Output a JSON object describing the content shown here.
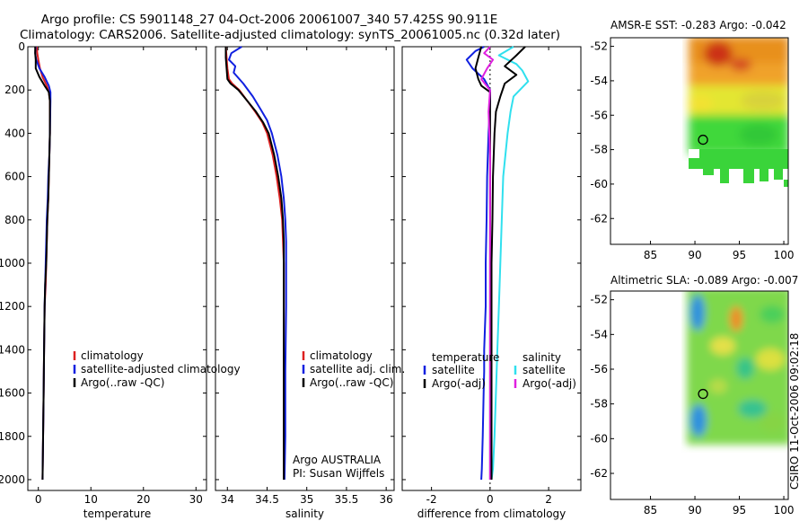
{
  "title": {
    "line1": "Argo profile: CS 5901148_27 04-Oct-2006 20061007_340 57.425S 90.911E",
    "line2": "Climatology: CARS2006. Satellite-adjusted climatology: synTS_20061005.nc (0.32d later)"
  },
  "colors": {
    "red": "#dd2020",
    "blue": "#1020e0",
    "black": "#000000",
    "cyan": "#30e0ee",
    "magenta": "#e020e0"
  },
  "stamp": "CSIRO 11-Oct-2006 09:02:18",
  "chart_data": [
    {
      "id": "temperature",
      "type": "line",
      "xlabel": "temperature",
      "xlim": [
        -2,
        32
      ],
      "ylim": [
        2050,
        0
      ],
      "xticks": [
        0,
        10,
        20,
        30
      ],
      "yticks": [
        0,
        200,
        400,
        600,
        800,
        1000,
        1200,
        1400,
        1600,
        1800,
        2000
      ],
      "legend": [
        "climatology",
        "satellite-adjusted climatology",
        "Argo(..raw -QC)"
      ],
      "series": [
        {
          "name": "climatology",
          "color": "red",
          "x": [
            -0.3,
            -0.2,
            0.0,
            0.3,
            0.8,
            1.6,
            2.0,
            2.2,
            2.2,
            2.1,
            2.0,
            1.9,
            1.7,
            1.5,
            1.4,
            1.2,
            1.1,
            1.0,
            0.9,
            0.8
          ],
          "y": [
            0,
            30,
            60,
            100,
            140,
            180,
            210,
            250,
            400,
            500,
            600,
            700,
            800,
            1000,
            1100,
            1200,
            1400,
            1600,
            1800,
            2000
          ]
        },
        {
          "name": "satellite-adjusted climatology",
          "color": "blue",
          "x": [
            -0.5,
            -0.6,
            -0.4,
            0.2,
            1.2,
            2.0,
            2.3,
            2.3,
            2.2,
            2.1,
            1.9,
            1.8,
            1.6,
            1.4,
            1.3,
            1.2,
            1.1,
            1.0,
            0.9,
            0.8
          ],
          "y": [
            0,
            30,
            60,
            100,
            140,
            180,
            210,
            250,
            400,
            500,
            600,
            700,
            800,
            1000,
            1100,
            1200,
            1400,
            1600,
            1800,
            2000
          ]
        },
        {
          "name": "Argo(..raw -QC)",
          "color": "black",
          "x": [
            -0.6,
            -0.6,
            -0.5,
            -0.5,
            0.2,
            1.2,
            2.0,
            2.2,
            2.2,
            2.1,
            2.0,
            1.9,
            1.7,
            1.5,
            1.3,
            1.2,
            1.1,
            1.0,
            0.9,
            0.8
          ],
          "y": [
            0,
            30,
            60,
            100,
            140,
            180,
            210,
            250,
            400,
            500,
            600,
            700,
            800,
            1000,
            1100,
            1200,
            1400,
            1600,
            1800,
            2000
          ]
        }
      ]
    },
    {
      "id": "salinity",
      "type": "line",
      "xlabel": "salinity",
      "xlim": [
        33.85,
        36.1
      ],
      "ylim": [
        2050,
        0
      ],
      "xticks": [
        34,
        34.5,
        35,
        35.5,
        36
      ],
      "yticks": [
        0,
        200,
        400,
        600,
        800,
        1000,
        1200,
        1400,
        1600,
        1800,
        2000
      ],
      "legend": [
        "climatology",
        "satellite adj. clim.",
        "Argo(..raw -QC)"
      ],
      "annotation": [
        "Argo AUSTRALIA",
        "PI: Susan Wijffels"
      ],
      "series": [
        {
          "name": "climatology",
          "color": "red",
          "x": [
            33.98,
            33.99,
            34.0,
            34.02,
            34.06,
            34.15,
            34.25,
            34.35,
            34.44,
            34.5,
            34.57,
            34.62,
            34.66,
            34.69,
            34.7,
            34.71,
            34.71,
            34.71,
            34.71,
            34.71
          ],
          "y": [
            0,
            50,
            100,
            150,
            170,
            200,
            250,
            300,
            350,
            400,
            500,
            600,
            700,
            800,
            900,
            1000,
            1200,
            1500,
            1800,
            2000
          ]
        },
        {
          "name": "satellite adj. clim.",
          "color": "blue",
          "x": [
            34.18,
            34.05,
            34.02,
            34.1,
            34.08,
            34.2,
            34.32,
            34.42,
            34.5,
            34.56,
            34.63,
            34.68,
            34.71,
            34.73,
            34.74,
            34.74,
            34.74,
            34.73,
            34.73,
            34.72
          ],
          "y": [
            0,
            30,
            60,
            90,
            120,
            170,
            230,
            290,
            340,
            400,
            500,
            600,
            700,
            800,
            900,
            1000,
            1200,
            1500,
            1800,
            2000
          ]
        },
        {
          "name": "Argo(..raw -QC)",
          "color": "black",
          "x": [
            33.98,
            33.98,
            33.99,
            34.0,
            34.04,
            34.14,
            34.25,
            34.36,
            34.45,
            34.52,
            34.59,
            34.64,
            34.68,
            34.7,
            34.71,
            34.71,
            34.71,
            34.71,
            34.71,
            34.71
          ],
          "y": [
            0,
            50,
            100,
            150,
            170,
            200,
            250,
            300,
            350,
            400,
            500,
            600,
            700,
            800,
            900,
            1000,
            1200,
            1500,
            1800,
            2000
          ]
        }
      ]
    },
    {
      "id": "difference",
      "type": "line",
      "xlabel": "difference from climatology",
      "xlim": [
        -3,
        3.1
      ],
      "ylim": [
        2050,
        0
      ],
      "xticks": [
        -2,
        0,
        2
      ],
      "yticks": [
        0,
        200,
        400,
        600,
        800,
        1000,
        1200,
        1400,
        1600,
        1800,
        2000
      ],
      "legend_headers": [
        "temperature",
        "salinity"
      ],
      "legend": [
        "satellite",
        "Argo(-adj)",
        "satellite",
        "Argo(-adj)"
      ],
      "series": [
        {
          "name": "temperature satellite",
          "color": "blue",
          "x": [
            -0.2,
            -0.5,
            -0.8,
            -0.6,
            -0.2,
            0.0,
            0.0,
            -0.05,
            -0.1,
            -0.12,
            -0.15,
            -0.15,
            -0.2,
            -0.2,
            -0.22,
            -0.25,
            -0.28,
            -0.3
          ],
          "y": [
            0,
            20,
            60,
            100,
            150,
            200,
            250,
            400,
            600,
            800,
            1000,
            1200,
            1400,
            1500,
            1600,
            1800,
            1950,
            2000
          ]
        },
        {
          "name": "temperature Argo(-adj)",
          "color": "black",
          "x": [
            -0.3,
            -0.4,
            -0.5,
            -0.4,
            -0.3,
            0.0,
            0.0,
            0.0,
            0.0,
            0.0,
            0.0,
            0.0,
            0.0,
            0.0
          ],
          "y": [
            0,
            50,
            100,
            150,
            180,
            210,
            250,
            400,
            600,
            800,
            1000,
            1400,
            1800,
            2000
          ]
        },
        {
          "name": "salinity satellite",
          "color": "cyan",
          "x": [
            0.8,
            0.3,
            0.9,
            1.1,
            1.3,
            0.8,
            0.7,
            0.6,
            0.45,
            0.4,
            0.35,
            0.3,
            0.25,
            0.2,
            0.15,
            0.1,
            0.05
          ],
          "y": [
            0,
            40,
            80,
            110,
            160,
            230,
            300,
            400,
            600,
            800,
            1000,
            1200,
            1400,
            1600,
            1800,
            1950,
            2000
          ]
        },
        {
          "name": "salinity Argo(-adj)",
          "color": "magenta",
          "x": [
            0.0,
            -0.2,
            0.1,
            -0.1,
            -0.3,
            0.0,
            -0.05,
            0.0,
            0.0,
            0.0,
            0.0
          ],
          "y": [
            0,
            30,
            60,
            100,
            150,
            200,
            300,
            500,
            1000,
            1500,
            2000
          ]
        },
        {
          "name": "salinity Argo raw",
          "color": "black",
          "x": [
            1.2,
            0.9,
            0.5,
            0.9,
            0.5,
            0.35,
            0.2,
            0.15,
            0.1,
            0.08,
            0.05,
            0.05
          ],
          "y": [
            0,
            40,
            90,
            130,
            170,
            230,
            300,
            400,
            600,
            800,
            1000,
            2000
          ]
        }
      ]
    },
    {
      "id": "sst_map",
      "type": "heatmap",
      "title": "AMSR-E SST: -0.283 Argo: -0.042",
      "xlim": [
        80.5,
        100.5
      ],
      "ylim": [
        -63.5,
        -51.5
      ],
      "xticks": [
        85,
        90,
        95,
        100
      ],
      "yticks": [
        -52,
        -54,
        -56,
        -58,
        -60,
        -62
      ],
      "marker": {
        "lon": 90.911,
        "lat": -57.425
      }
    },
    {
      "id": "sla_map",
      "type": "heatmap",
      "title": "Altimetric SLA: -0.089 Argo: -0.007",
      "xlim": [
        80.5,
        100.5
      ],
      "ylim": [
        -63.5,
        -51.5
      ],
      "xticks": [
        85,
        90,
        95,
        100
      ],
      "yticks": [
        -52,
        -54,
        -56,
        -58,
        -60,
        -62
      ],
      "marker": {
        "lon": 90.911,
        "lat": -57.425
      }
    }
  ]
}
